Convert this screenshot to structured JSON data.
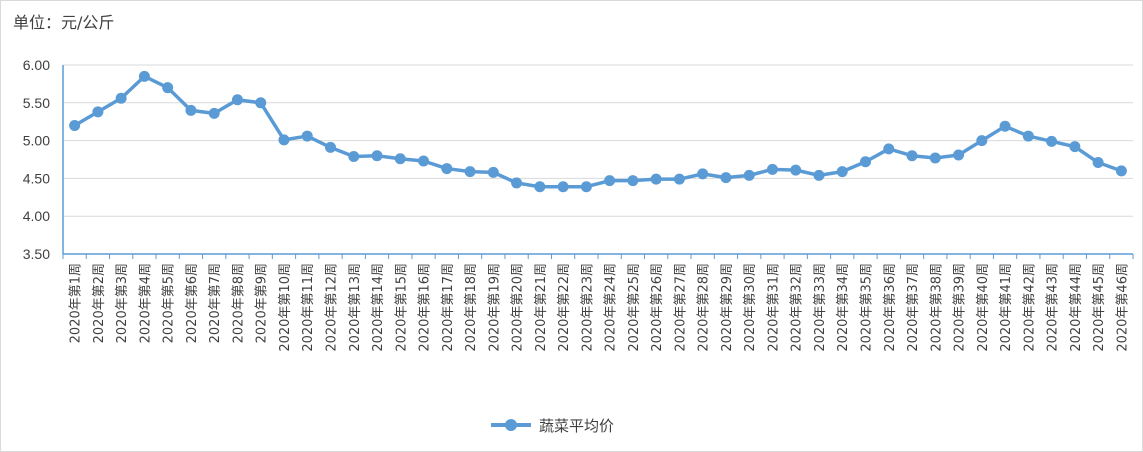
{
  "chart_data": {
    "type": "line",
    "unit_label": "单位：元/公斤",
    "categories": [
      "2020年第1周",
      "2020年第2周",
      "2020年第3周",
      "2020年第4周",
      "2020年第5周",
      "2020年第6周",
      "2020年第7周",
      "2020年第8周",
      "2020年第9周",
      "2020年第10周",
      "2020年第11周",
      "2020年第12周",
      "2020年第13周",
      "2020年第14周",
      "2020年第15周",
      "2020年第16周",
      "2020年第17周",
      "2020年第18周",
      "2020年第19周",
      "2020年第20周",
      "2020年第21周",
      "2020年第22周",
      "2020年第23周",
      "2020年第24周",
      "2020年第25周",
      "2020年第26周",
      "2020年第27周",
      "2020年第28周",
      "2020年第29周",
      "2020年第30周",
      "2020年第31周",
      "2020年第32周",
      "2020年第33周",
      "2020年第34周",
      "2020年第35周",
      "2020年第36周",
      "2020年第37周",
      "2020年第38周",
      "2020年第39周",
      "2020年第40周",
      "2020年第41周",
      "2020年第42周",
      "2020年第43周",
      "2020年第44周",
      "2020年第45周",
      "2020年第46周"
    ],
    "series": [
      {
        "name": "蔬菜平均价",
        "color": "#5b9bd5",
        "values": [
          5.2,
          5.38,
          5.56,
          5.85,
          5.7,
          5.4,
          5.36,
          5.54,
          5.5,
          5.01,
          5.06,
          4.91,
          4.79,
          4.8,
          4.76,
          4.73,
          4.63,
          4.59,
          4.58,
          4.44,
          4.39,
          4.39,
          4.39,
          4.47,
          4.47,
          4.49,
          4.49,
          4.56,
          4.51,
          4.54,
          4.62,
          4.61,
          4.54,
          4.59,
          4.72,
          4.89,
          4.8,
          4.77,
          4.81,
          5.0,
          5.19,
          5.06,
          4.99,
          4.92,
          4.71,
          4.6
        ]
      }
    ],
    "ylim": [
      3.5,
      6.0
    ],
    "yticks": [
      "3.50",
      "4.00",
      "4.50",
      "5.00",
      "5.50",
      "6.00"
    ],
    "grid": true,
    "legend_position": "bottom"
  }
}
